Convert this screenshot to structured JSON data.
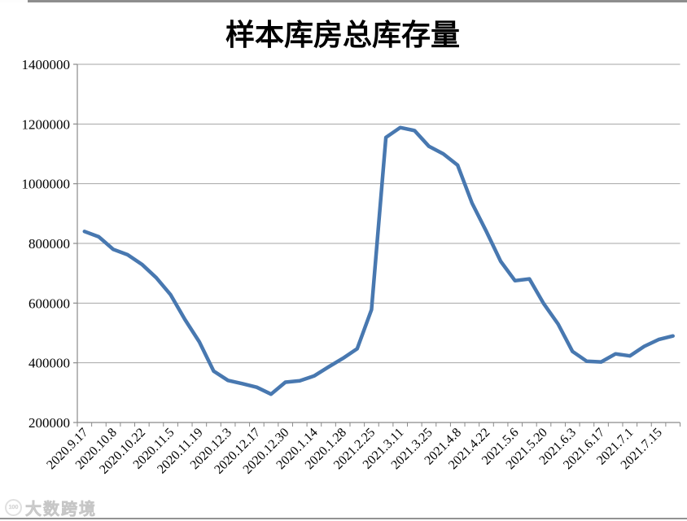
{
  "window": {
    "watermark": {
      "logo_text": "100",
      "text": "大数跨境"
    }
  },
  "chart_data": {
    "type": "line",
    "title": "样本库房总库存量",
    "xlabel": "",
    "ylabel": "",
    "ylim": [
      200000,
      1400000
    ],
    "ytick_step": 200000,
    "ytick_labels": [
      "200000",
      "400000",
      "600000",
      "800000",
      "1000000",
      "1200000",
      "1400000"
    ],
    "x_labels": [
      "2020.9.17",
      "2020.10.8",
      "2020.10.22",
      "2020.11.5",
      "2020.11.19",
      "2020.12.3",
      "2020.12.17",
      "2020.12.30",
      "2020.1.14",
      "2020.1.28",
      "2021.2.25",
      "2021.3.11",
      "2021.3.25",
      "2021.4.8",
      "2021.4.22",
      "2021.5.6",
      "2021.5.20",
      "2021.6.3",
      "2021.6.17",
      "2021.7.1",
      "2021.7.15"
    ],
    "label_every": 2,
    "values": [
      840000,
      822000,
      780000,
      762000,
      730000,
      685000,
      628000,
      545000,
      470000,
      372000,
      341000,
      330000,
      318000,
      295000,
      335000,
      340000,
      356000,
      386000,
      415000,
      447000,
      578000,
      1155000,
      1188000,
      1178000,
      1125000,
      1100000,
      1062000,
      935000,
      840000,
      740000,
      675000,
      681000,
      598000,
      530000,
      438000,
      405000,
      403000,
      430000,
      423000,
      455000,
      478000,
      490000
    ],
    "line_color": "#4878b0",
    "grid": true,
    "grid_color": "#a6a6a6",
    "axis_color": "#8a8a8a",
    "text_color": "#000000",
    "legend_position": "none"
  }
}
